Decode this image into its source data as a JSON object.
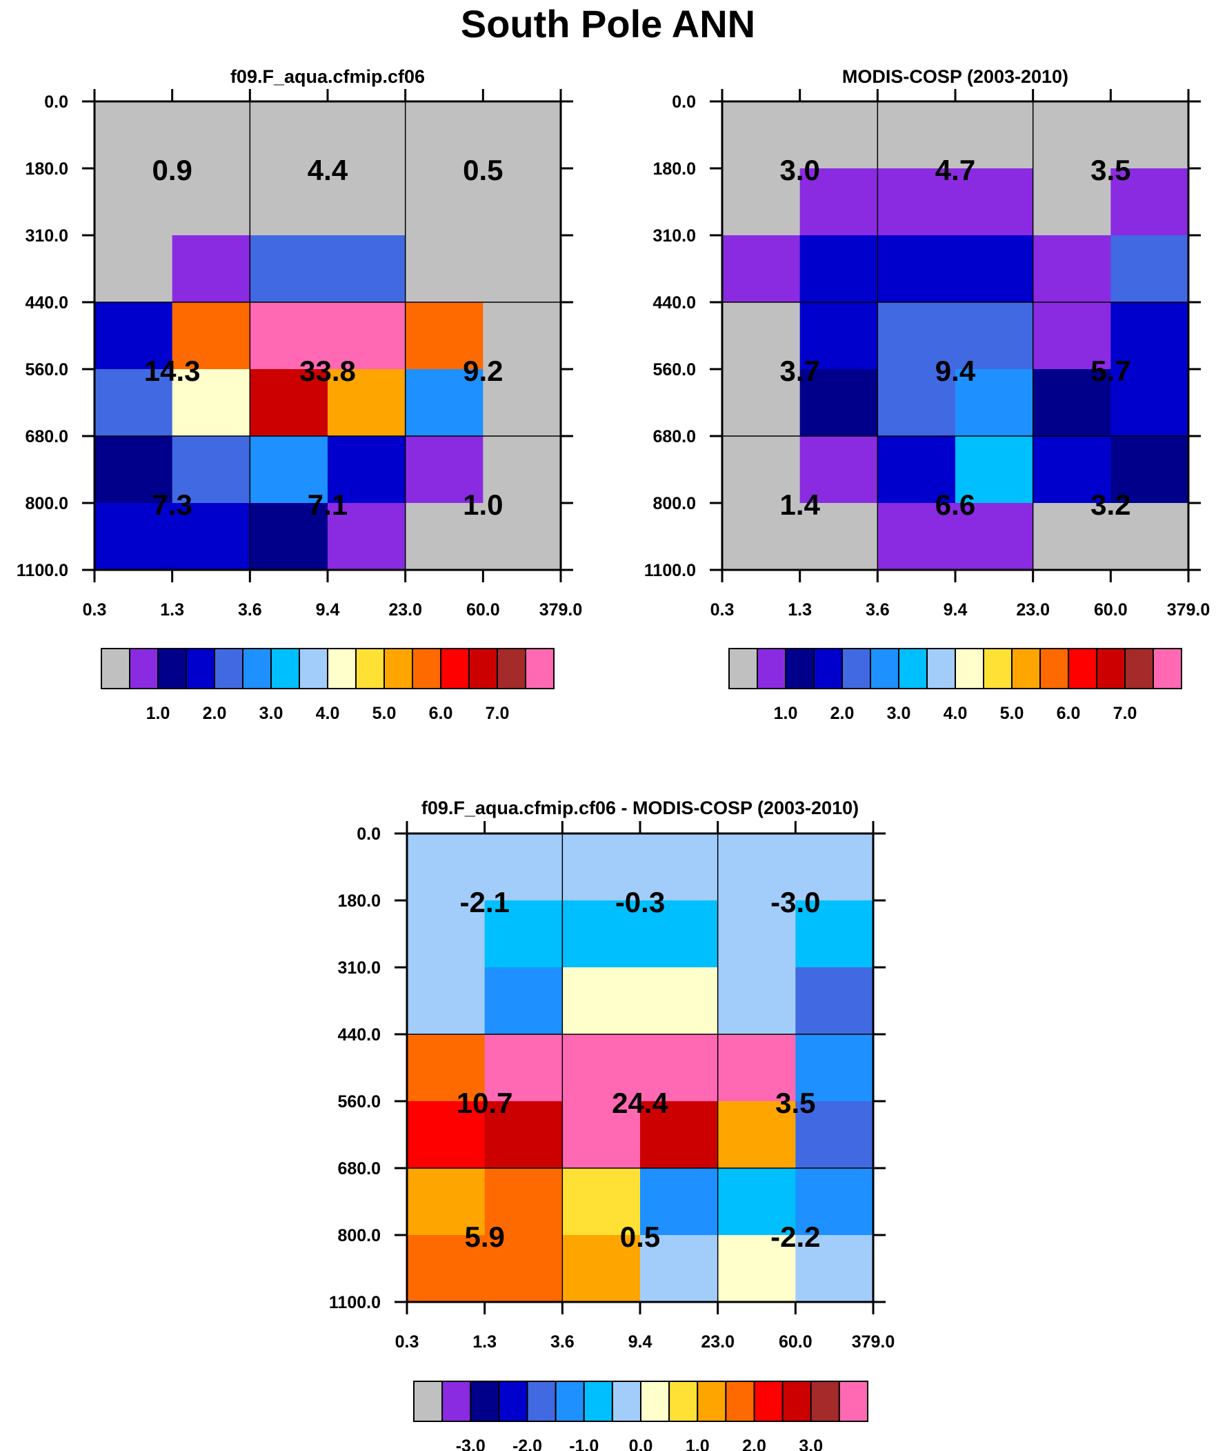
{
  "figure": {
    "title": "South Pole ANN"
  },
  "colors": {
    "ramp": [
      "#c0c0c0",
      "#8a2be2",
      "#00008b",
      "#0000cd",
      "#4169e1",
      "#1e90ff",
      "#00bfff",
      "#a2cdfa",
      "#ffffcc",
      "#ffe135",
      "#ffa500",
      "#ff6a00",
      "#ff0000",
      "#cd0000",
      "#a52a2a",
      "#ff69b4"
    ]
  },
  "chart_data": [
    {
      "type": "heatmap",
      "title": "f09.F_aqua.cfmip.cf06",
      "x_ticks": [
        "0.3",
        "1.3",
        "3.6",
        "9.4",
        "23.0",
        "60.0",
        "379.0"
      ],
      "y_ticks": [
        "0.0",
        "180.0",
        "310.0",
        "440.0",
        "560.0",
        "680.0",
        "800.0",
        "1100.0"
      ],
      "cells": [
        [
          0,
          0,
          0,
          0,
          0,
          0
        ],
        [
          0,
          0,
          0,
          0,
          0,
          0
        ],
        [
          0,
          1,
          4,
          4,
          0,
          0
        ],
        [
          3,
          11,
          15,
          15,
          11,
          0
        ],
        [
          4,
          8,
          13,
          10,
          5,
          0
        ],
        [
          2,
          4,
          5,
          3,
          1,
          0
        ],
        [
          3,
          3,
          2,
          1,
          0,
          0
        ]
      ],
      "summary": [
        [
          "0.9",
          "4.4",
          "0.5"
        ],
        [
          "14.3",
          "33.8",
          "9.2"
        ],
        [
          "7.3",
          "7.1",
          "1.0"
        ]
      ],
      "colorbar": {
        "colors": [
          0,
          1,
          2,
          3,
          4,
          5,
          6,
          7,
          8,
          9,
          10,
          11,
          12,
          13,
          14,
          15
        ],
        "labels": [
          "1.0",
          "2.0",
          "3.0",
          "4.0",
          "5.0",
          "6.0",
          "7.0"
        ]
      }
    },
    {
      "type": "heatmap",
      "title": "MODIS-COSP (2003-2010)",
      "x_ticks": [
        "0.3",
        "1.3",
        "3.6",
        "9.4",
        "23.0",
        "60.0",
        "379.0"
      ],
      "y_ticks": [
        "0.0",
        "180.0",
        "310.0",
        "440.0",
        "560.0",
        "680.0",
        "800.0",
        "1100.0"
      ],
      "cells": [
        [
          0,
          0,
          0,
          0,
          0,
          0
        ],
        [
          0,
          1,
          1,
          1,
          0,
          1
        ],
        [
          1,
          3,
          3,
          3,
          1,
          4
        ],
        [
          0,
          3,
          4,
          4,
          1,
          3
        ],
        [
          0,
          2,
          4,
          5,
          2,
          3
        ],
        [
          0,
          1,
          3,
          6,
          3,
          2
        ],
        [
          0,
          0,
          1,
          1,
          0,
          0
        ]
      ],
      "summary": [
        [
          "3.0",
          "4.7",
          "3.5"
        ],
        [
          "3.7",
          "9.4",
          "5.7"
        ],
        [
          "1.4",
          "6.6",
          "3.2"
        ]
      ],
      "colorbar": {
        "colors": [
          0,
          1,
          2,
          3,
          4,
          5,
          6,
          7,
          8,
          9,
          10,
          11,
          12,
          13,
          14,
          15
        ],
        "labels": [
          "1.0",
          "2.0",
          "3.0",
          "4.0",
          "5.0",
          "6.0",
          "7.0"
        ]
      }
    },
    {
      "type": "heatmap",
      "title": "f09.F_aqua.cfmip.cf06 - MODIS-COSP (2003-2010)",
      "x_ticks": [
        "0.3",
        "1.3",
        "3.6",
        "9.4",
        "23.0",
        "60.0",
        "379.0"
      ],
      "y_ticks": [
        "0.0",
        "180.0",
        "310.0",
        "440.0",
        "560.0",
        "680.0",
        "800.0",
        "1100.0"
      ],
      "cells": [
        [
          7,
          7,
          7,
          7,
          7,
          7
        ],
        [
          7,
          6,
          6,
          6,
          7,
          6
        ],
        [
          7,
          5,
          8,
          8,
          7,
          4
        ],
        [
          11,
          15,
          15,
          15,
          15,
          5
        ],
        [
          12,
          13,
          15,
          13,
          10,
          4
        ],
        [
          10,
          11,
          9,
          5,
          6,
          5
        ],
        [
          11,
          11,
          10,
          7,
          8,
          7
        ]
      ],
      "summary": [
        [
          "-2.1",
          "-0.3",
          "-3.0"
        ],
        [
          "10.7",
          "24.4",
          "3.5"
        ],
        [
          "5.9",
          "0.5",
          "-2.2"
        ]
      ],
      "colorbar": {
        "colors": [
          0,
          1,
          2,
          3,
          4,
          5,
          6,
          7,
          8,
          9,
          10,
          11,
          12,
          13,
          14,
          15
        ],
        "labels": [
          "-3.0",
          "-2.0",
          "-1.0",
          "0.0",
          "1.0",
          "2.0",
          "3.0"
        ]
      }
    }
  ]
}
